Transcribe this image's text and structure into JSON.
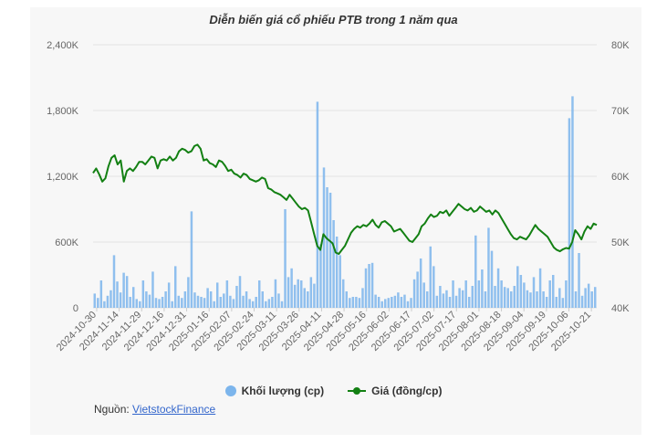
{
  "chart_data": {
    "type": "bar+line",
    "title": "Diễn biến giá cổ phiếu PTB trong 1 năm qua",
    "x_labels": [
      "2024-10-30",
      "2024-11-14",
      "2024-11-29",
      "2024-12-16",
      "2024-12-31",
      "2025-01-16",
      "2025-02-07",
      "2025-02-24",
      "2025-03-11",
      "2025-03-26",
      "2025-04-11",
      "2025-04-28",
      "2025-05-16",
      "2025-06-02",
      "2025-06-17",
      "2025-07-02",
      "2025-07-17",
      "2025-08-01",
      "2025-08-18",
      "2025-09-04",
      "2025-09-19",
      "2025-10-06",
      "2025-10-21"
    ],
    "y_left": {
      "ticks": [
        "0",
        "600K",
        "1,200K",
        "1,800K",
        "2,400K"
      ],
      "min": 0,
      "max": 2400
    },
    "y_right": {
      "ticks": [
        "40K",
        "50K",
        "60K",
        "70K",
        "80K"
      ],
      "min": 40,
      "max": 80
    },
    "grid": true,
    "legend_position": "bottom",
    "series": [
      {
        "name": "Khối lượng (cp)",
        "kind": "bar",
        "color": "#7cb5ec",
        "values": [
          130,
          90,
          250,
          60,
          110,
          160,
          480,
          240,
          140,
          320,
          290,
          100,
          190,
          80,
          60,
          250,
          150,
          120,
          330,
          90,
          80,
          100,
          150,
          230,
          60,
          380,
          110,
          90,
          150,
          280,
          880,
          140,
          110,
          100,
          90,
          180,
          150,
          60,
          230,
          100,
          130,
          250,
          110,
          80,
          200,
          290,
          110,
          150,
          80,
          60,
          100,
          250,
          150,
          60,
          80,
          100,
          260,
          130,
          60,
          900,
          280,
          360,
          210,
          260,
          250,
          180,
          150,
          280,
          220,
          1880,
          580,
          1280,
          1100,
          1050,
          800,
          650,
          480,
          260,
          150,
          90,
          100,
          100,
          90,
          180,
          360,
          400,
          410,
          120,
          100,
          60,
          80,
          90,
          100,
          110,
          140,
          100,
          120,
          60,
          90,
          260,
          330,
          450,
          230,
          150,
          560,
          380,
          110,
          200,
          130,
          160,
          100,
          250,
          110,
          180,
          160,
          250,
          100,
          200,
          660,
          250,
          350,
          150,
          730,
          520,
          200,
          360,
          250,
          190,
          180,
          150,
          200,
          380,
          300,
          230,
          160,
          140,
          280,
          150,
          360,
          150,
          100,
          250,
          300,
          100,
          180,
          90,
          250,
          1730,
          1930,
          150,
          500,
          110,
          180,
          220,
          150,
          190
        ]
      },
      {
        "name": "Giá (đồng/cp)",
        "kind": "line",
        "color": "#138013",
        "values": [
          60.5,
          61.2,
          60.3,
          59.2,
          59.7,
          61.5,
          62.8,
          63.2,
          61.8,
          62.4,
          59.2,
          60.8,
          61.2,
          60.8,
          61.4,
          62.2,
          62.2,
          61.8,
          62.4,
          63.0,
          62.8,
          61.2,
          62.4,
          62.6,
          62.4,
          63.0,
          62.4,
          62.8,
          63.8,
          64.2,
          64.0,
          63.6,
          63.8,
          64.6,
          64.8,
          64.2,
          62.4,
          62.6,
          62.0,
          61.8,
          61.4,
          62.4,
          62.2,
          61.6,
          60.8,
          61.0,
          60.4,
          60.2,
          59.8,
          60.4,
          60.2,
          59.6,
          59.4,
          59.2,
          59.4,
          59.8,
          59.6,
          58.2,
          58.0,
          57.6,
          57.4,
          57.2,
          56.8,
          56.4,
          57.2,
          56.6,
          56.0,
          55.4,
          55.0,
          55.2,
          54.8,
          53.0,
          51.2,
          49.4,
          48.8,
          51.2,
          50.6,
          50.2,
          49.8,
          48.4,
          48.2,
          48.8,
          49.4,
          50.4,
          51.4,
          52.0,
          52.4,
          52.2,
          52.6,
          52.4,
          52.8,
          53.4,
          52.6,
          52.2,
          53.0,
          53.2,
          52.8,
          52.4,
          51.6,
          51.8,
          52.0,
          51.4,
          50.8,
          50.2,
          50.0,
          50.6,
          51.2,
          52.4,
          52.8,
          53.6,
          54.2,
          53.8,
          54.0,
          54.6,
          54.4,
          54.8,
          54.0,
          54.6,
          55.2,
          55.8,
          55.4,
          55.0,
          54.8,
          55.2,
          54.6,
          54.8,
          55.4,
          55.0,
          54.6,
          54.8,
          54.2,
          54.8,
          54.4,
          53.6,
          52.8,
          52.0,
          51.2,
          50.6,
          50.4,
          50.8,
          50.6,
          50.4,
          51.0,
          51.8,
          52.6,
          52.0,
          51.6,
          51.2,
          50.8,
          50.0,
          49.2,
          48.8,
          48.6,
          48.9,
          49.1,
          49.0,
          50.0,
          51.8,
          51.2,
          50.4,
          51.6,
          52.4,
          52.0,
          52.8,
          52.6
        ]
      }
    ]
  },
  "source": {
    "prefix": "Nguồn: ",
    "link_text": "VietstockFinance"
  }
}
